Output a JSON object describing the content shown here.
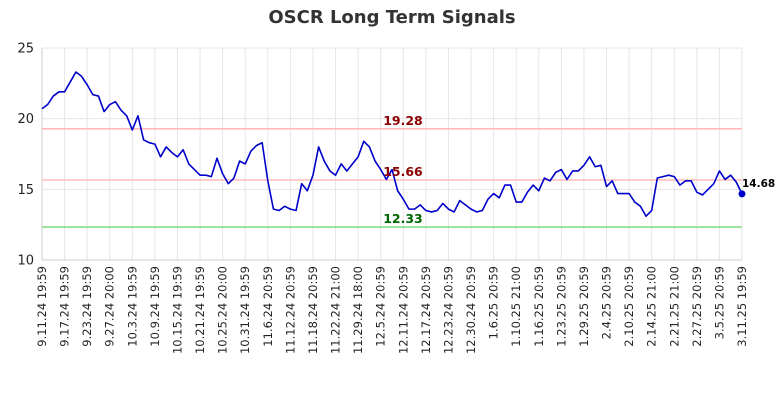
{
  "chart_data": {
    "type": "line",
    "title": "OSCR Long Term Signals",
    "ylim": [
      10,
      25
    ],
    "yticks": [
      10,
      15,
      20,
      25
    ],
    "xticks": [
      "9.11.24 19:59",
      "9.17.24 19:59",
      "9.23.24 19:59",
      "9.27.24 20:00",
      "10.3.24 19:59",
      "10.9.24 19:59",
      "10.15.24 19:59",
      "10.21.24 19:59",
      "10.25.24 20:00",
      "10.31.24 19:59",
      "11.6.24 20:59",
      "11.12.24 20:59",
      "11.18.24 20:59",
      "11.22.24 21:00",
      "11.29.24 18:00",
      "12.5.24 20:59",
      "12.11.24 20:59",
      "12.17.24 20:59",
      "12.23.24 20:59",
      "12.30.24 20:59",
      "1.6.25 20:59",
      "1.10.25 21:00",
      "1.16.25 20:59",
      "1.23.25 20:59",
      "1.29.25 20:59",
      "2.4.25 20:59",
      "2.10.25 20:59",
      "2.14.25 21:00",
      "2.21.25 21:00",
      "2.27.25 20:59",
      "3.5.25 20:59",
      "3.11.25 19:59"
    ],
    "grid": true,
    "series": [
      {
        "color": "#0000cc",
        "values": [
          20.7,
          21.0,
          21.6,
          21.9,
          21.9,
          22.6,
          23.3,
          23.0,
          22.4,
          21.7,
          21.6,
          20.5,
          21.0,
          21.2,
          20.6,
          20.2,
          19.2,
          20.2,
          18.5,
          18.3,
          18.2,
          17.3,
          18.0,
          17.6,
          17.3,
          17.8,
          16.8,
          16.4,
          16.0,
          16.0,
          15.9,
          17.2,
          16.1,
          15.4,
          15.8,
          17.0,
          16.8,
          17.7,
          18.1,
          18.3,
          15.6,
          13.6,
          13.5,
          13.8,
          13.6,
          13.5,
          15.4,
          14.9,
          16.0,
          18.0,
          17.0,
          16.3,
          16.0,
          16.8,
          16.3,
          16.8,
          17.3,
          18.4,
          18.0,
          17.0,
          16.4,
          15.7,
          16.4,
          14.9,
          14.3,
          13.6,
          13.6,
          13.9,
          13.5,
          13.4,
          13.5,
          14.0,
          13.6,
          13.4,
          14.2,
          13.9,
          13.6,
          13.4,
          13.5,
          14.3,
          14.7,
          14.4,
          15.3,
          15.3,
          14.1,
          14.1,
          14.8,
          15.3,
          14.9,
          15.8,
          15.6,
          16.2,
          16.4,
          15.7,
          16.3,
          16.3,
          16.7,
          17.3,
          16.6,
          16.7,
          15.2,
          15.6,
          14.7,
          14.7,
          14.7,
          14.1,
          13.8,
          13.1,
          13.5,
          15.8,
          15.9,
          16.0,
          15.9,
          15.3,
          15.6,
          15.6,
          14.8,
          14.6,
          15.0,
          15.4,
          16.3,
          15.7,
          16.0,
          15.5,
          14.68
        ]
      }
    ],
    "reference_lines": [
      {
        "value": 19.28,
        "label": "19.28",
        "line_color": "#ffbbbb",
        "label_color": "#8b0000"
      },
      {
        "value": 15.66,
        "label": "15.66",
        "line_color": "#ffbbbb",
        "label_color": "#8b0000"
      },
      {
        "value": 12.33,
        "label": "12.33",
        "line_color": "#88dd88",
        "label_color": "#006400"
      }
    ],
    "last_point_label": "14.68"
  }
}
